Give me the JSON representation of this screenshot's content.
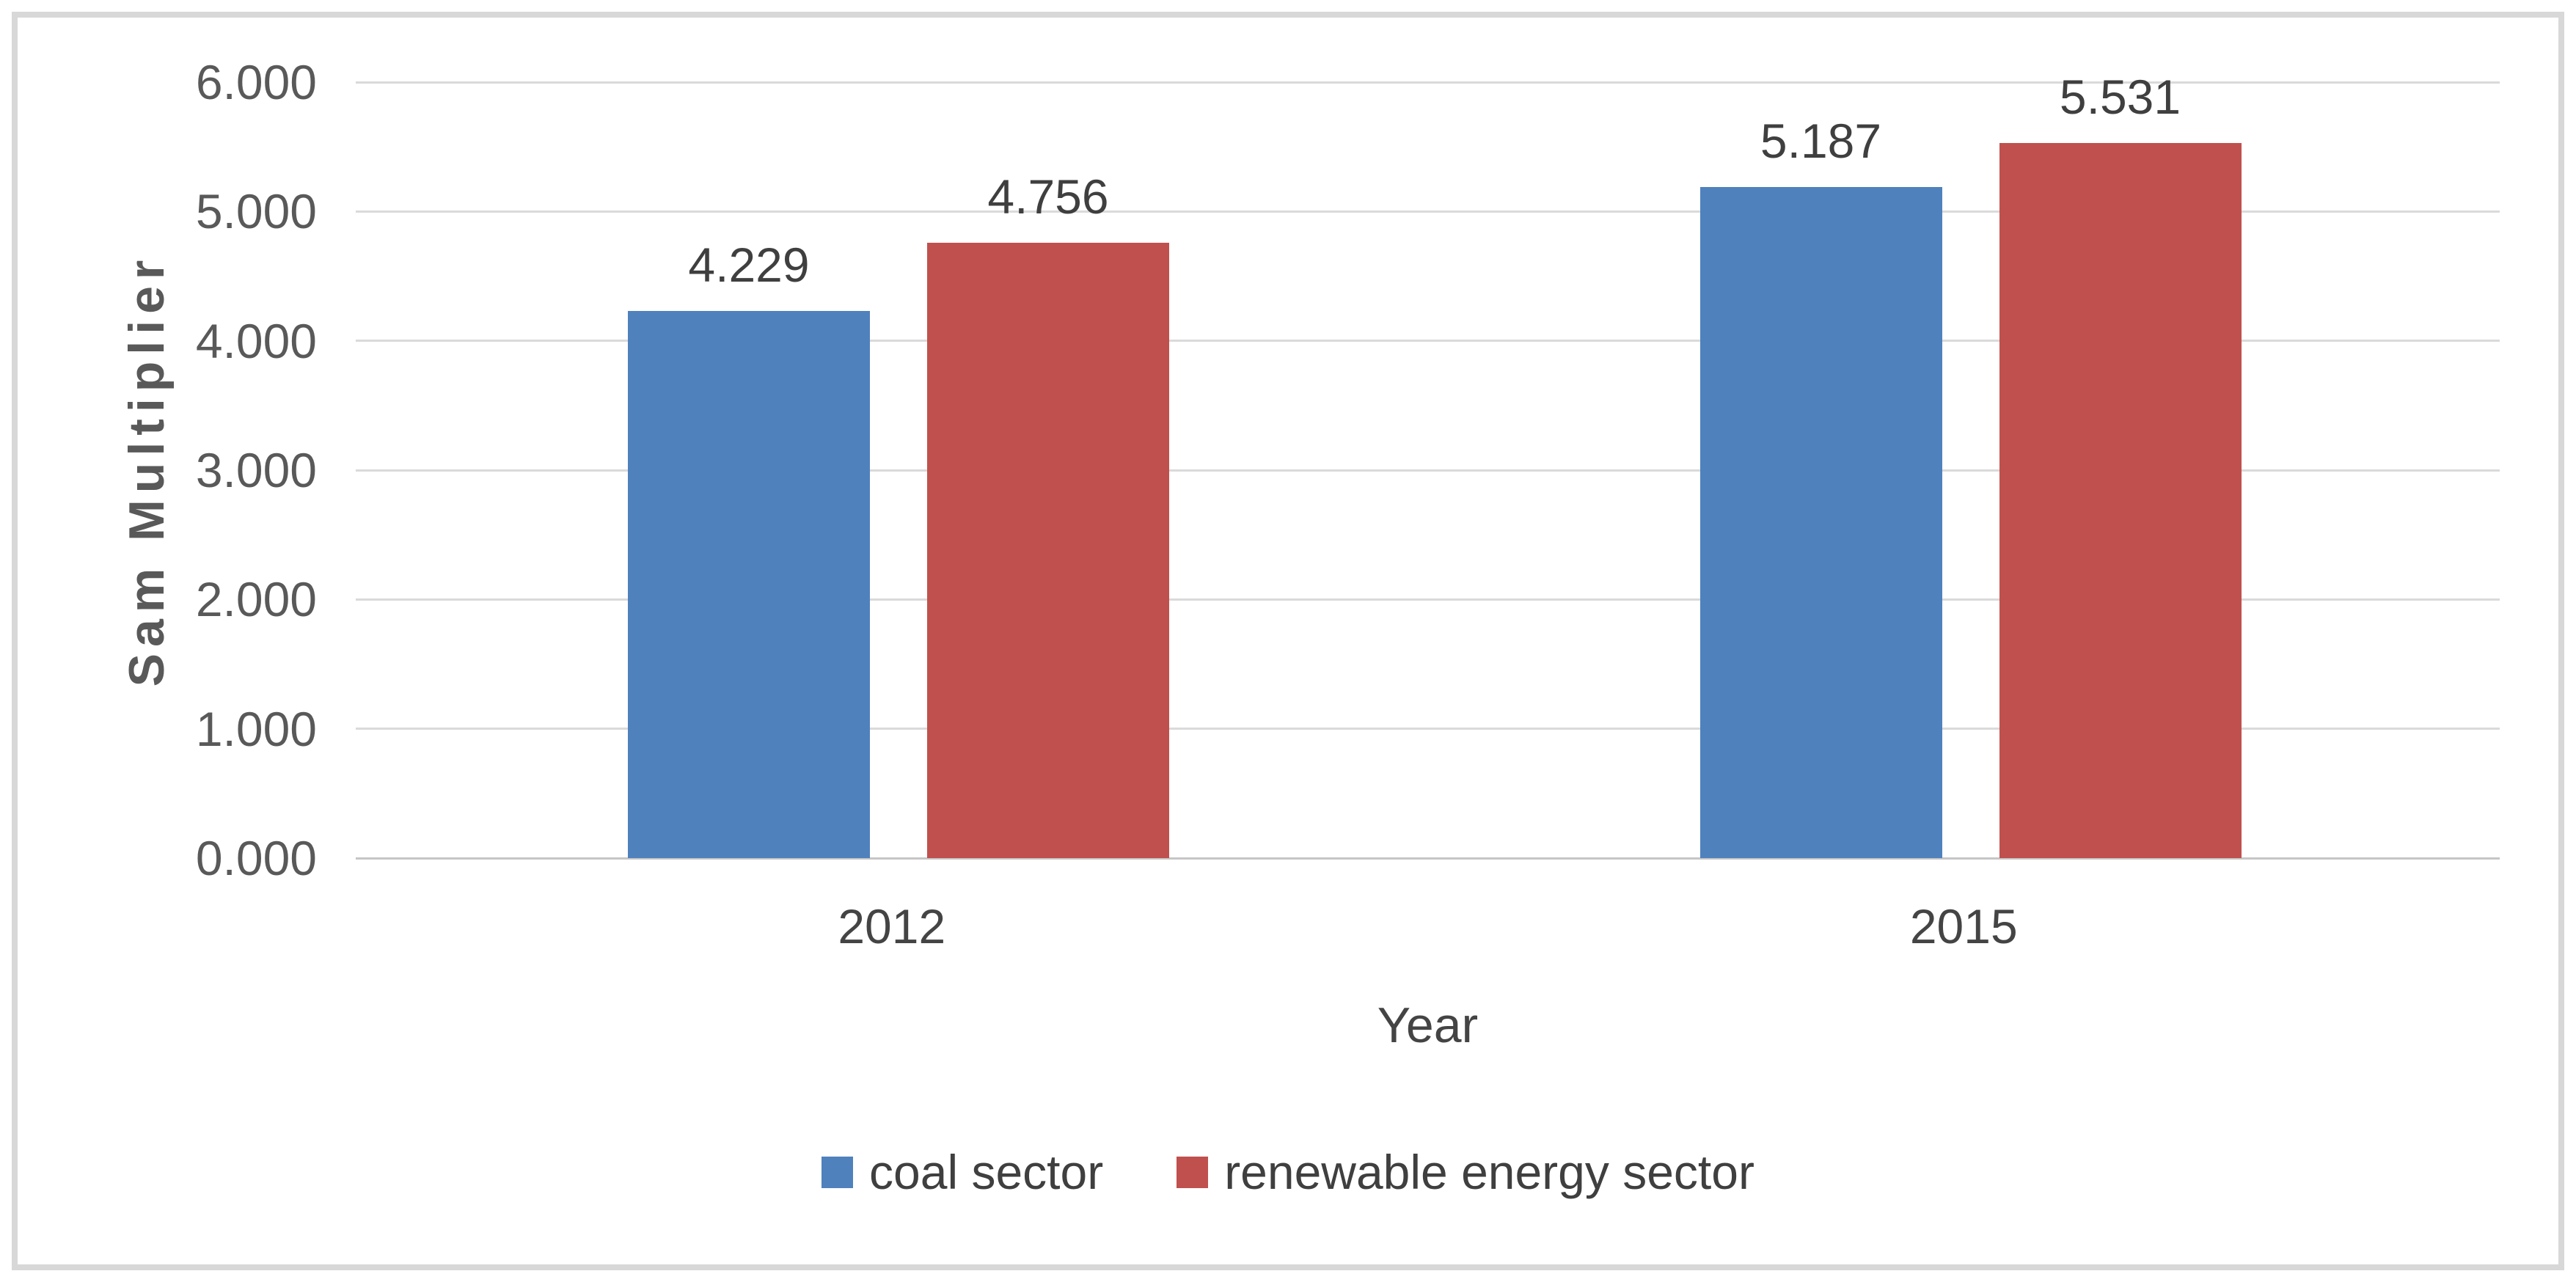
{
  "chart_data": {
    "type": "bar",
    "categories": [
      "2012",
      "2015"
    ],
    "series": [
      {
        "name": "coal sector",
        "color": "#4F81BD",
        "values": [
          4.229,
          5.187
        ]
      },
      {
        "name": "renewable energy sector",
        "color": "#C0504D",
        "values": [
          4.756,
          5.531
        ]
      }
    ],
    "data_labels": [
      [
        "4.229",
        "5.187"
      ],
      [
        "4.756",
        "5.531"
      ]
    ],
    "xlabel": "Year",
    "ylabel": "Sam Multiplier",
    "ylim": [
      0,
      6
    ],
    "ytick_step": 1,
    "ytick_labels": [
      "0.000",
      "1.000",
      "2.000",
      "3.000",
      "4.000",
      "5.000",
      "6.000"
    ],
    "grid": true,
    "legend_position": "bottom",
    "colors": {
      "gridline": "#DADADA",
      "axis_line": "#C6C6C6",
      "tick_text": "#595959",
      "label_text": "#3F3F3F",
      "frame_border": "#D8D8D8"
    }
  }
}
